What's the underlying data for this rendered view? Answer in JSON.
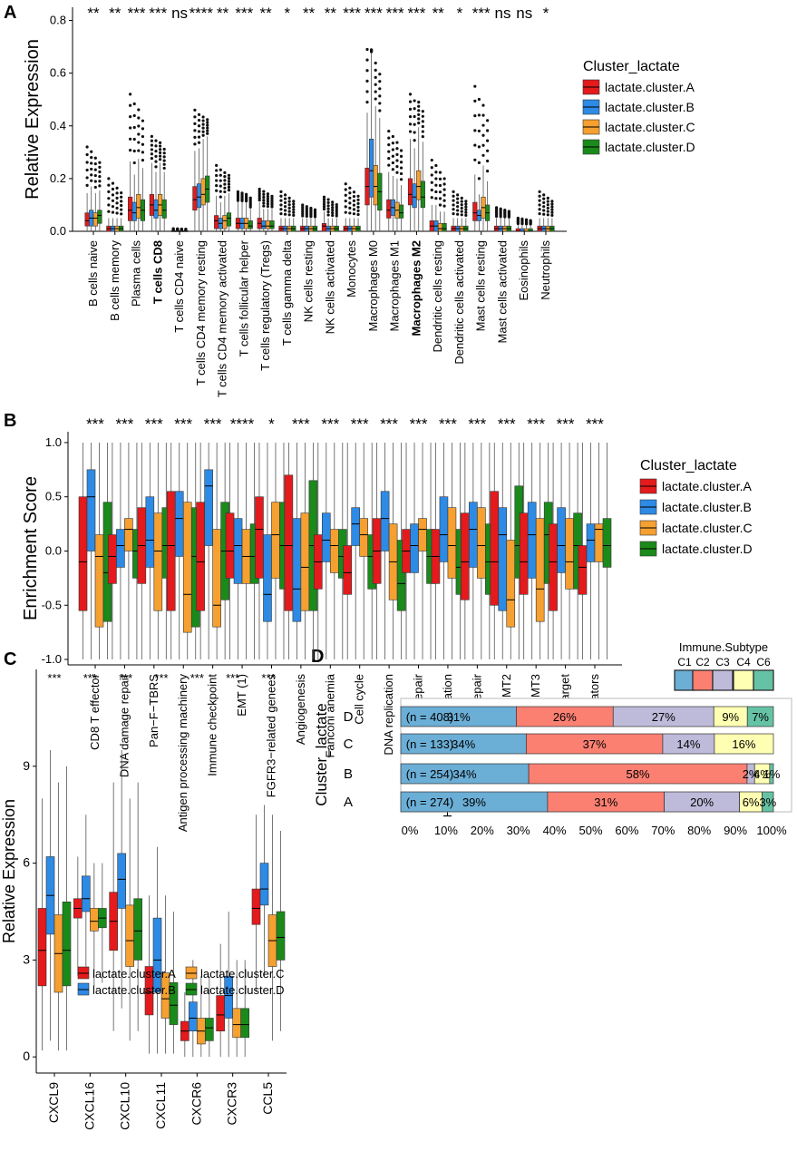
{
  "colors": {
    "A": "#e41a1c",
    "B": "#2d8ae5",
    "C": "#f5a030",
    "D": "#1a8a1a",
    "immune": [
      "#6baed6",
      "#fb8072",
      "#bebada",
      "#ffffb3",
      "#66c2a5",
      "#e0e0e0"
    ]
  },
  "chart_data": [
    {
      "panel": "A",
      "type": "box",
      "ylabel": "Relative Expression",
      "ylim": [
        0,
        0.85
      ],
      "yticks": [
        "0.0",
        "0.2",
        "0.4",
        "0.6",
        "0.8"
      ],
      "legend_title": "Cluster_lactate",
      "legend": [
        "lactate.cluster.A",
        "lactate.cluster.B",
        "lactate.cluster.C",
        "lactate.cluster.D"
      ],
      "categories": [
        "B cells naive",
        "B cells memory",
        "Plasma cells",
        "T cells CD8",
        "T cells CD4 naive",
        "T cells CD4 memory resting",
        "T cells CD4 memory activated",
        "T cells follicular helper",
        "T cells regulatory (Tregs)",
        "T cells gamma delta",
        "NK cells resting",
        "NK cells activated",
        "Monocytes",
        "Macrophages M0",
        "Macrophages M1",
        "Macrophages M2",
        "Dendritic cells resting",
        "Dendritic cells activated",
        "Mast cells resting",
        "Mast cells activated",
        "Eosinophils",
        "Neutrophils"
      ],
      "bold": [
        false,
        false,
        false,
        true,
        false,
        false,
        false,
        false,
        false,
        false,
        false,
        false,
        false,
        false,
        false,
        true,
        false,
        false,
        false,
        false,
        false,
        false
      ],
      "significance": [
        "**",
        "**",
        "***",
        "***",
        "ns",
        "****",
        "**",
        "***",
        "**",
        "*",
        "**",
        "**",
        "***",
        "***",
        "***",
        "***",
        "**",
        "*",
        "***",
        "ns",
        "ns",
        "*"
      ],
      "medians": [
        [
          0.04,
          0.05,
          0.05,
          0.06
        ],
        [
          0.01,
          0.01,
          0.01,
          0.01
        ],
        [
          0.08,
          0.07,
          0.09,
          0.08
        ],
        [
          0.1,
          0.08,
          0.1,
          0.08
        ],
        [
          0,
          0,
          0,
          0
        ],
        [
          0.12,
          0.13,
          0.14,
          0.16
        ],
        [
          0.04,
          0.03,
          0.04,
          0.05
        ],
        [
          0.03,
          0.03,
          0.03,
          0.02
        ],
        [
          0.03,
          0.02,
          0.02,
          0.02
        ],
        [
          0.01,
          0.01,
          0.01,
          0.01
        ],
        [
          0.01,
          0.01,
          0.01,
          0.01
        ],
        [
          0.02,
          0.01,
          0.01,
          0.01
        ],
        [
          0.01,
          0.01,
          0.01,
          0.01
        ],
        [
          0.17,
          0.23,
          0.17,
          0.15
        ],
        [
          0.08,
          0.09,
          0.08,
          0.07
        ],
        [
          0.14,
          0.13,
          0.17,
          0.13
        ],
        [
          0.02,
          0.02,
          0.01,
          0.01
        ],
        [
          0.01,
          0.01,
          0.01,
          0.01
        ],
        [
          0.07,
          0.06,
          0.09,
          0.07
        ],
        [
          0.01,
          0.01,
          0.01,
          0.01
        ],
        [
          0,
          0,
          0,
          0
        ],
        [
          0.01,
          0.01,
          0.01,
          0.01
        ]
      ],
      "q1": [
        [
          0.02,
          0.02,
          0.02,
          0.03
        ],
        [
          0,
          0,
          0,
          0
        ],
        [
          0.04,
          0.04,
          0.05,
          0.04
        ],
        [
          0.06,
          0.05,
          0.06,
          0.05
        ],
        [
          0,
          0,
          0,
          0
        ],
        [
          0.08,
          0.09,
          0.1,
          0.11
        ],
        [
          0.01,
          0.01,
          0.01,
          0.02
        ],
        [
          0.01,
          0.01,
          0.01,
          0.01
        ],
        [
          0.01,
          0.01,
          0.01,
          0.01
        ],
        [
          0,
          0,
          0,
          0
        ],
        [
          0,
          0,
          0,
          0
        ],
        [
          0,
          0,
          0,
          0
        ],
        [
          0,
          0,
          0,
          0
        ],
        [
          0.1,
          0.13,
          0.1,
          0.08
        ],
        [
          0.05,
          0.06,
          0.05,
          0.05
        ],
        [
          0.1,
          0.09,
          0.12,
          0.09
        ],
        [
          0,
          0,
          0,
          0
        ],
        [
          0,
          0,
          0,
          0
        ],
        [
          0.04,
          0.04,
          0.05,
          0.04
        ],
        [
          0,
          0,
          0,
          0
        ],
        [
          0,
          0,
          0,
          0
        ],
        [
          0,
          0,
          0,
          0
        ]
      ],
      "q3": [
        [
          0.07,
          0.08,
          0.07,
          0.08
        ],
        [
          0.02,
          0.02,
          0.02,
          0.02
        ],
        [
          0.13,
          0.11,
          0.14,
          0.12
        ],
        [
          0.14,
          0.12,
          0.14,
          0.12
        ],
        [
          0.002,
          0.002,
          0.002,
          0.002
        ],
        [
          0.17,
          0.18,
          0.2,
          0.21
        ],
        [
          0.06,
          0.05,
          0.06,
          0.07
        ],
        [
          0.05,
          0.05,
          0.05,
          0.04
        ],
        [
          0.05,
          0.04,
          0.04,
          0.04
        ],
        [
          0.02,
          0.02,
          0.02,
          0.02
        ],
        [
          0.02,
          0.02,
          0.02,
          0.02
        ],
        [
          0.03,
          0.02,
          0.02,
          0.02
        ],
        [
          0.02,
          0.02,
          0.02,
          0.02
        ],
        [
          0.24,
          0.35,
          0.25,
          0.22
        ],
        [
          0.12,
          0.12,
          0.11,
          0.1
        ],
        [
          0.2,
          0.18,
          0.23,
          0.19
        ],
        [
          0.04,
          0.04,
          0.03,
          0.03
        ],
        [
          0.02,
          0.02,
          0.02,
          0.02
        ],
        [
          0.11,
          0.08,
          0.13,
          0.1
        ],
        [
          0.02,
          0.02,
          0.02,
          0.02
        ],
        [
          0.01,
          0.01,
          0.01,
          0.01
        ],
        [
          0.02,
          0.02,
          0.02,
          0.02
        ]
      ],
      "maxima": [
        0.32,
        0.2,
        0.52,
        0.36,
        0.01,
        0.46,
        0.25,
        0.15,
        0.16,
        0.15,
        0.1,
        0.13,
        0.18,
        0.69,
        0.38,
        0.52,
        0.27,
        0.15,
        0.55,
        0.09,
        0.05,
        0.15
      ]
    },
    {
      "panel": "B",
      "type": "box",
      "ylabel": "Enrichment Score",
      "ylim": [
        -1.05,
        1.1
      ],
      "yticks": [
        "-1.0",
        "-0.5",
        "0.0",
        "0.5",
        "1.0"
      ],
      "legend_title": "Cluster_lactate",
      "legend": [
        "lactate.cluster.A",
        "lactate.cluster.B",
        "lactate.cluster.C",
        "lactate.cluster.D"
      ],
      "categories": [
        "CD8 T effector",
        "DNA damage repair",
        "Pan−F−TBRS",
        "Antigen processing machinery",
        "Immune checkpoint",
        "EMT (1)",
        "FGFR3−related genees",
        "Angiogenesis",
        "Fanconi anemia",
        "Cell cycle",
        "DNA replication",
        "Nucleotide excision repair",
        "Homologous recombination",
        "Mismatch repair",
        "EMT2",
        "EMT3",
        "WNT target",
        "Cell cycle regulators"
      ],
      "significance": [
        "***",
        "***",
        "***",
        "***",
        "***",
        "****",
        "*",
        "***",
        "***",
        "***",
        "***",
        "***",
        "***",
        "***",
        "***",
        "***",
        "***",
        "***"
      ],
      "medians": [
        [
          -0.1,
          0.5,
          -0.05,
          -0.2
        ],
        [
          -0.05,
          0.05,
          0.2,
          0.0
        ],
        [
          0.05,
          0.1,
          0.0,
          0.05
        ],
        [
          0.05,
          0.3,
          -0.4,
          -0.05
        ],
        [
          -0.1,
          0.6,
          -0.5,
          0.0
        ],
        [
          0.0,
          0.05,
          -0.05,
          -0.05
        ],
        [
          0.2,
          -0.4,
          0.15,
          0.05
        ],
        [
          0.05,
          -0.35,
          -0.15,
          0.05
        ],
        [
          -0.1,
          0.1,
          0.05,
          -0.05
        ],
        [
          -0.2,
          0.25,
          0.15,
          -0.05
        ],
        [
          0.0,
          0.3,
          -0.1,
          -0.3
        ],
        [
          0.0,
          0.05,
          0.2,
          -0.05
        ],
        [
          -0.05,
          0.15,
          0.05,
          -0.15
        ],
        [
          -0.1,
          0.2,
          0.05,
          -0.1
        ],
        [
          -0.1,
          0.15,
          -0.45,
          0.05
        ],
        [
          -0.1,
          0.15,
          -0.35,
          0.15
        ],
        [
          -0.1,
          0.05,
          -0.1,
          0.05
        ],
        [
          -0.15,
          0.1,
          0.2,
          0.05
        ]
      ],
      "q1": [
        [
          -0.55,
          0.0,
          -0.7,
          -0.65
        ],
        [
          -0.3,
          -0.15,
          0.0,
          -0.25
        ],
        [
          -0.3,
          -0.15,
          -0.55,
          -0.25
        ],
        [
          -0.55,
          -0.05,
          -0.75,
          -0.7
        ],
        [
          -0.55,
          0.05,
          -0.7,
          -0.45
        ],
        [
          -0.25,
          -0.3,
          -0.3,
          -0.3
        ],
        [
          -0.25,
          -0.65,
          -0.25,
          -0.35
        ],
        [
          -0.55,
          -0.65,
          -0.55,
          -0.55
        ],
        [
          -0.35,
          -0.1,
          -0.2,
          -0.25
        ],
        [
          -0.4,
          0.05,
          -0.05,
          -0.35
        ],
        [
          -0.3,
          0.0,
          -0.45,
          -0.55
        ],
        [
          -0.2,
          -0.2,
          0.0,
          -0.3
        ],
        [
          -0.3,
          -0.1,
          -0.25,
          -0.4
        ],
        [
          -0.45,
          -0.15,
          -0.25,
          -0.4
        ],
        [
          -0.5,
          -0.55,
          -0.7,
          -0.25
        ],
        [
          -0.4,
          -0.25,
          -0.65,
          -0.3
        ],
        [
          -0.55,
          -0.2,
          -0.35,
          -0.35
        ],
        [
          -0.4,
          -0.1,
          -0.1,
          -0.15
        ]
      ],
      "q3": [
        [
          0.5,
          0.75,
          0.15,
          0.45
        ],
        [
          0.15,
          0.2,
          0.3,
          0.2
        ],
        [
          0.4,
          0.5,
          0.35,
          0.4
        ],
        [
          0.55,
          0.55,
          0.45,
          0.4
        ],
        [
          0.45,
          0.75,
          0.2,
          0.45
        ],
        [
          0.35,
          0.3,
          0.2,
          0.25
        ],
        [
          0.5,
          0.15,
          0.45,
          0.45
        ],
        [
          0.7,
          0.3,
          0.35,
          0.65
        ],
        [
          0.15,
          0.35,
          0.2,
          0.2
        ],
        [
          0.05,
          0.4,
          0.3,
          0.15
        ],
        [
          0.3,
          0.55,
          0.25,
          0.1
        ],
        [
          0.2,
          0.25,
          0.3,
          0.2
        ],
        [
          0.2,
          0.5,
          0.4,
          0.2
        ],
        [
          0.35,
          0.45,
          0.4,
          0.25
        ],
        [
          0.55,
          0.4,
          0.1,
          0.6
        ],
        [
          0.35,
          0.45,
          0.3,
          0.45
        ],
        [
          0.25,
          0.4,
          0.3,
          0.35
        ],
        [
          0.05,
          0.25,
          0.25,
          0.3
        ]
      ],
      "whisker_lo": -1.0,
      "whisker_hi": 1.0
    },
    {
      "panel": "C",
      "type": "box",
      "ylabel": "Relative Expression",
      "ylim": [
        -0.5,
        12
      ],
      "yticks": [
        "0",
        "3",
        "6",
        "9"
      ],
      "legend": [
        "lactate.cluster.A",
        "lactate.cluster.B",
        "lactate.cluster.C",
        "lactate.cluster.D"
      ],
      "categories": [
        "CXCL9",
        "CXCL16",
        "CXCL10",
        "CXCL11",
        "CXCR6",
        "CXCR3",
        "CCL5"
      ],
      "significance": [
        "***",
        "***",
        "***",
        "***",
        "***",
        "***",
        "***"
      ],
      "medians": [
        [
          3.3,
          5.0,
          3.2,
          3.3
        ],
        [
          4.6,
          4.9,
          4.2,
          4.3
        ],
        [
          4.2,
          5.5,
          3.6,
          3.9
        ],
        [
          2.0,
          3.0,
          1.8,
          1.6
        ],
        [
          0.8,
          1.2,
          0.8,
          0.9
        ],
        [
          1.3,
          1.9,
          1.0,
          1.0
        ],
        [
          4.6,
          5.2,
          3.6,
          3.7
        ]
      ],
      "q1": [
        [
          2.2,
          3.8,
          2.0,
          2.2
        ],
        [
          4.3,
          4.5,
          3.9,
          4.0
        ],
        [
          3.3,
          4.6,
          2.8,
          3.0
        ],
        [
          1.3,
          2.0,
          1.2,
          1.0
        ],
        [
          0.5,
          0.8,
          0.4,
          0.5
        ],
        [
          0.8,
          1.2,
          0.6,
          0.6
        ],
        [
          4.1,
          4.7,
          2.8,
          3.0
        ]
      ],
      "q3": [
        [
          4.6,
          6.2,
          4.4,
          4.8
        ],
        [
          4.9,
          5.6,
          4.6,
          4.6
        ],
        [
          5.1,
          6.3,
          4.7,
          4.9
        ],
        [
          2.8,
          4.3,
          2.6,
          2.3
        ],
        [
          1.1,
          1.7,
          1.2,
          1.2
        ],
        [
          1.9,
          2.5,
          1.5,
          1.5
        ],
        [
          5.2,
          6.0,
          4.4,
          4.5
        ]
      ],
      "whisker_lo": [
        [
          0.2,
          0.5,
          0.2,
          0.2
        ],
        [
          2.5,
          2.8,
          2.2,
          2.3
        ],
        [
          0.8,
          1.5,
          0.5,
          0.8
        ],
        [
          0.1,
          0.1,
          0.1,
          0.1
        ],
        [
          0.0,
          0.0,
          0.0,
          0.0
        ],
        [
          0.0,
          0.0,
          0.0,
          0.0
        ],
        [
          2.0,
          2.5,
          0.5,
          0.8
        ]
      ],
      "whisker_hi": [
        [
          8.0,
          9.5,
          8.5,
          9.0
        ],
        [
          6.2,
          7.5,
          6.0,
          6.0
        ],
        [
          8.5,
          9.5,
          8.0,
          8.5
        ],
        [
          5.0,
          6.5,
          5.0,
          4.5
        ],
        [
          2.0,
          3.0,
          2.5,
          2.5
        ],
        [
          3.5,
          4.5,
          3.0,
          3.0
        ],
        [
          7.5,
          7.8,
          7.5,
          7.0
        ]
      ]
    },
    {
      "panel": "D",
      "type": "stacked_bar_horizontal",
      "ylabel": "Cluster_lactate",
      "legend_title": "Immune.Subtype",
      "legend": [
        "C1",
        "C2",
        "C3",
        "C4",
        "C6"
      ],
      "rows": [
        {
          "cluster": "D",
          "n": "(n = 408)",
          "values": [
            0.31,
            0.26,
            0.27,
            0.09,
            0.07
          ],
          "labels": [
            "31%",
            "26%",
            "27%",
            "9%",
            "7%"
          ]
        },
        {
          "cluster": "C",
          "n": "(n = 133)",
          "values": [
            0.34,
            0.37,
            0.14,
            0.16,
            0.0
          ],
          "labels": [
            "34%",
            "37%",
            "14%",
            "16%",
            ""
          ]
        },
        {
          "cluster": "B",
          "n": "(n = 254)",
          "values": [
            0.34,
            0.58,
            0.02,
            0.04,
            0.01
          ],
          "labels": [
            "34%",
            "58%",
            "2%",
            "4%",
            "1%"
          ]
        },
        {
          "cluster": "A",
          "n": "(n = 274)",
          "values": [
            0.39,
            0.31,
            0.2,
            0.06,
            0.03
          ],
          "labels": [
            "39%",
            "31%",
            "20%",
            "6%",
            "3%"
          ]
        }
      ],
      "xticks": [
        "0%",
        "10%",
        "20%",
        "30%",
        "40%",
        "50%",
        "60%",
        "70%",
        "80%",
        "90%",
        "100%"
      ]
    }
  ],
  "labels": {
    "panelA": "A",
    "panelB": "B",
    "panelC": "C",
    "panelD": "D"
  }
}
